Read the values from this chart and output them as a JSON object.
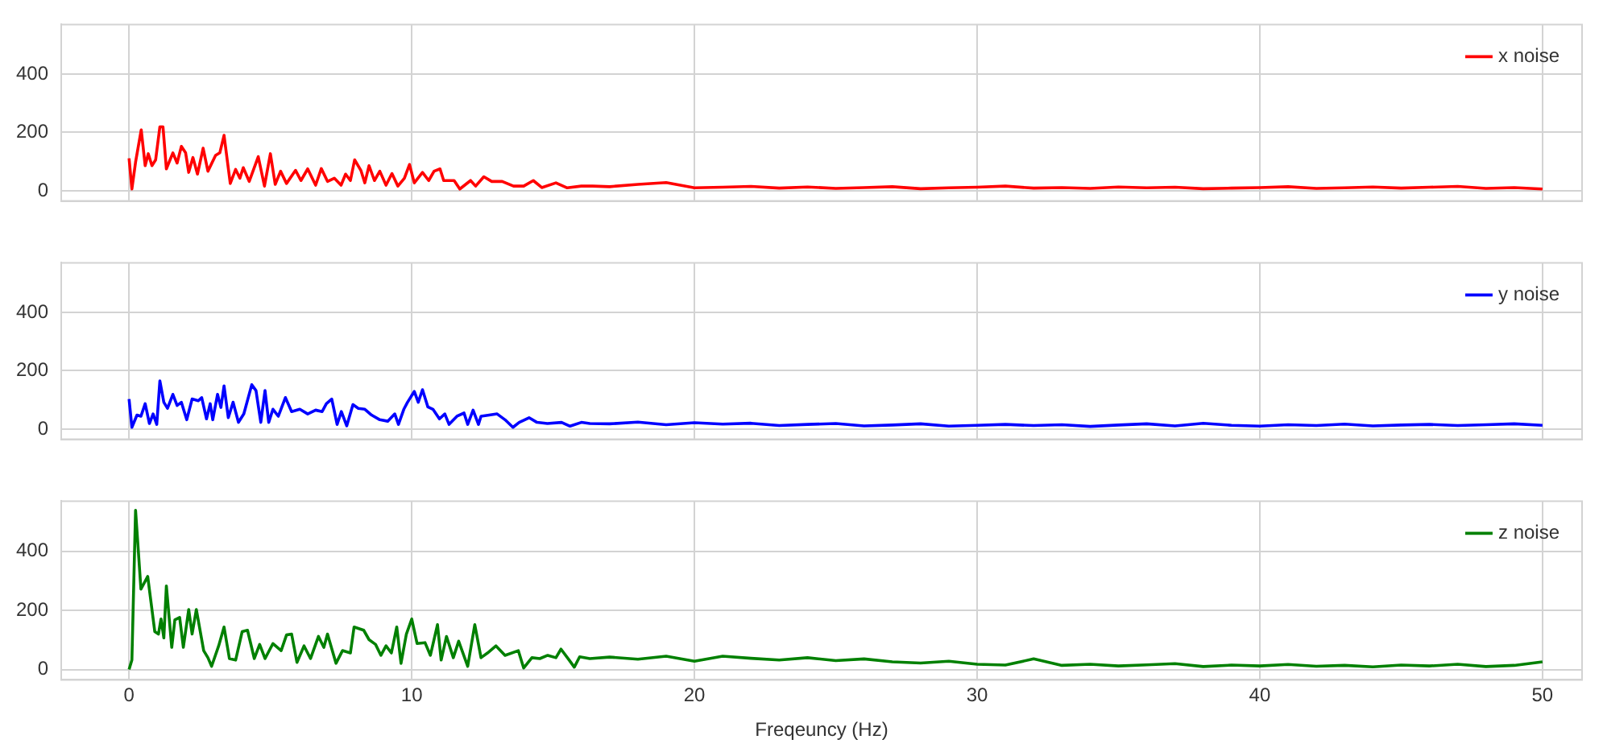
{
  "chart_data": [
    {
      "type": "line",
      "xlim": [
        -2.4,
        51.4
      ],
      "ylim": [
        -35,
        570
      ],
      "xticks": [
        0,
        10,
        20,
        30,
        40,
        50
      ],
      "yticks": [
        0,
        200,
        400
      ],
      "grid": true,
      "legend": "top right",
      "tick_labels": "y",
      "series": [
        {
          "name": "x noise",
          "color": "#ff0000",
          "x": [
            0,
            0.1,
            0.23,
            0.43,
            0.57,
            0.68,
            0.81,
            0.94,
            1.09,
            1.2,
            1.32,
            1.55,
            1.7,
            1.85,
            2.0,
            2.11,
            2.26,
            2.42,
            2.62,
            2.79,
            3.06,
            3.21,
            3.36,
            3.58,
            3.77,
            3.92,
            4.04,
            4.25,
            4.57,
            4.79,
            5.0,
            5.17,
            5.36,
            5.57,
            5.89,
            6.08,
            6.32,
            6.6,
            6.8,
            7.02,
            7.26,
            7.5,
            7.66,
            7.83,
            7.98,
            8.2,
            8.34,
            8.49,
            8.68,
            8.87,
            9.09,
            9.3,
            9.51,
            9.74,
            9.92,
            10.09,
            10.38,
            10.6,
            10.79,
            11.0,
            11.13,
            11.5,
            11.7,
            12.08,
            12.26,
            12.55,
            12.83,
            13.2,
            13.6,
            13.96,
            14.3,
            14.6,
            15.1,
            15.5,
            16.0,
            16.4,
            17,
            18,
            19,
            20,
            21,
            22,
            23,
            24,
            25,
            26,
            27,
            28,
            29,
            30,
            31,
            32,
            33,
            34,
            35,
            36,
            37,
            38,
            39,
            40,
            41,
            42,
            43,
            44,
            45,
            46,
            47,
            48,
            49,
            50
          ],
          "values": [
            111,
            6,
            98,
            209,
            86,
            127,
            86,
            106,
            219,
            219,
            75,
            130,
            95,
            152,
            130,
            63,
            114,
            57,
            146,
            67,
            121,
            130,
            190,
            25,
            73,
            43,
            79,
            32,
            117,
            16,
            127,
            22,
            67,
            25,
            70,
            35,
            75,
            19,
            76,
            32,
            43,
            19,
            57,
            35,
            106,
            70,
            27,
            86,
            35,
            67,
            19,
            59,
            16,
            43,
            90,
            27,
            63,
            35,
            67,
            75,
            35,
            35,
            6,
            35,
            16,
            48,
            32,
            32,
            16,
            16,
            35,
            11,
            27,
            10,
            16,
            16,
            14,
            22,
            28,
            10,
            12,
            15,
            9,
            13,
            8,
            11,
            14,
            7,
            10,
            12,
            16,
            9,
            11,
            8,
            13,
            10,
            12,
            7,
            9,
            11,
            14,
            8,
            10,
            13,
            9,
            12,
            15,
            8,
            11,
            6
          ]
        }
      ]
    },
    {
      "type": "line",
      "xlim": [
        -2.4,
        51.4
      ],
      "ylim": [
        -35,
        570
      ],
      "xticks": [
        0,
        10,
        20,
        30,
        40,
        50
      ],
      "yticks": [
        0,
        200,
        400
      ],
      "grid": true,
      "legend": "top right",
      "tick_labels": "y",
      "series": [
        {
          "name": "y noise",
          "color": "#0000ff",
          "x": [
            0,
            0.1,
            0.28,
            0.42,
            0.57,
            0.72,
            0.85,
            0.98,
            1.09,
            1.23,
            1.36,
            1.55,
            1.7,
            1.85,
            2.04,
            2.23,
            2.45,
            2.57,
            2.74,
            2.87,
            2.96,
            3.13,
            3.25,
            3.36,
            3.51,
            3.68,
            3.87,
            4.06,
            4.34,
            4.49,
            4.66,
            4.81,
            4.94,
            5.09,
            5.28,
            5.53,
            5.75,
            6.04,
            6.32,
            6.6,
            6.83,
            6.98,
            7.17,
            7.36,
            7.51,
            7.7,
            7.92,
            8.11,
            8.34,
            8.58,
            8.87,
            9.15,
            9.4,
            9.53,
            9.72,
            9.85,
            10.09,
            10.23,
            10.38,
            10.57,
            10.75,
            10.98,
            11.17,
            11.32,
            11.6,
            11.85,
            11.98,
            12.17,
            12.36,
            12.45,
            12.74,
            13.02,
            13.3,
            13.58,
            13.8,
            14.15,
            14.43,
            14.8,
            15.3,
            15.6,
            16.0,
            16.3,
            17,
            18,
            19,
            20,
            21,
            22,
            23,
            24,
            25,
            26,
            27,
            28,
            29,
            30,
            31,
            32,
            33,
            34,
            35,
            36,
            37,
            38,
            39,
            40,
            41,
            42,
            43,
            44,
            45,
            46,
            47,
            48,
            49,
            50
          ],
          "values": [
            103,
            6,
            48,
            44,
            87,
            19,
            52,
            16,
            165,
            92,
            71,
            119,
            81,
            92,
            32,
            103,
            97,
            108,
            35,
            87,
            32,
            119,
            74,
            148,
            39,
            92,
            23,
            52,
            152,
            132,
            23,
            132,
            23,
            68,
            44,
            108,
            60,
            68,
            52,
            65,
            60,
            87,
            103,
            16,
            60,
            11,
            84,
            71,
            68,
            48,
            32,
            27,
            52,
            16,
            68,
            92,
            129,
            92,
            135,
            76,
            68,
            35,
            52,
            16,
            44,
            55,
            16,
            65,
            16,
            44,
            48,
            52,
            32,
            6,
            23,
            39,
            23,
            19,
            23,
            10,
            23,
            19,
            18,
            24,
            15,
            22,
            17,
            20,
            12,
            16,
            19,
            11,
            14,
            18,
            10,
            13,
            16,
            12,
            15,
            9,
            14,
            18,
            11,
            20,
            13,
            10,
            15,
            12,
            17,
            11,
            14,
            16,
            12,
            15,
            18,
            13
          ]
        }
      ]
    },
    {
      "type": "line",
      "xlim": [
        -2.4,
        51.4
      ],
      "ylim": [
        -35,
        570
      ],
      "xticks": [
        0,
        10,
        20,
        30,
        40,
        50
      ],
      "yticks": [
        0,
        200,
        400
      ],
      "grid": true,
      "legend": "top right",
      "xlabel": "Freqeuncy (Hz)",
      "series": [
        {
          "name": "z noise",
          "color": "#008000",
          "x": [
            0,
            0.1,
            0.23,
            0.42,
            0.66,
            0.91,
            1.04,
            1.13,
            1.23,
            1.32,
            1.51,
            1.62,
            1.79,
            1.92,
            2.11,
            2.23,
            2.38,
            2.64,
            2.79,
            2.92,
            3.17,
            3.36,
            3.55,
            3.77,
            4.0,
            4.19,
            4.43,
            4.62,
            4.81,
            5.09,
            5.38,
            5.57,
            5.75,
            5.94,
            6.19,
            6.42,
            6.7,
            6.89,
            7.02,
            7.32,
            7.55,
            7.83,
            7.96,
            8.3,
            8.49,
            8.72,
            8.91,
            9.09,
            9.28,
            9.47,
            9.62,
            9.81,
            10.0,
            10.19,
            10.47,
            10.66,
            10.91,
            11.04,
            11.23,
            11.47,
            11.66,
            11.98,
            12.23,
            12.45,
            12.68,
            12.98,
            13.3,
            13.77,
            13.96,
            14.25,
            14.53,
            14.81,
            15.1,
            15.28,
            15.57,
            15.75,
            15.94,
            16.3,
            17,
            18,
            19,
            20,
            21,
            22,
            23,
            24,
            25,
            26,
            27,
            28,
            29,
            30,
            31,
            32,
            33,
            34,
            35,
            36,
            37,
            38,
            39,
            40,
            41,
            42,
            43,
            44,
            45,
            46,
            47,
            48,
            49,
            50
          ],
          "values": [
            0,
            32,
            539,
            272,
            315,
            128,
            120,
            171,
            107,
            283,
            75,
            168,
            176,
            75,
            203,
            120,
            203,
            64,
            40,
            11,
            80,
            144,
            37,
            32,
            128,
            133,
            37,
            85,
            37,
            88,
            64,
            117,
            120,
            24,
            80,
            37,
            112,
            75,
            120,
            21,
            64,
            56,
            144,
            133,
            101,
            85,
            48,
            80,
            56,
            144,
            21,
            120,
            171,
            88,
            91,
            48,
            152,
            32,
            112,
            40,
            96,
            11,
            152,
            40,
            56,
            80,
            48,
            64,
            5,
            40,
            37,
            48,
            40,
            69,
            32,
            8,
            43,
            37,
            42,
            35,
            45,
            28,
            45,
            38,
            32,
            40,
            30,
            36,
            26,
            22,
            28,
            18,
            15,
            36,
            14,
            18,
            12,
            16,
            20,
            10,
            15,
            12,
            17,
            11,
            14,
            9,
            15,
            12,
            18,
            10,
            14,
            26
          ]
        }
      ]
    }
  ]
}
